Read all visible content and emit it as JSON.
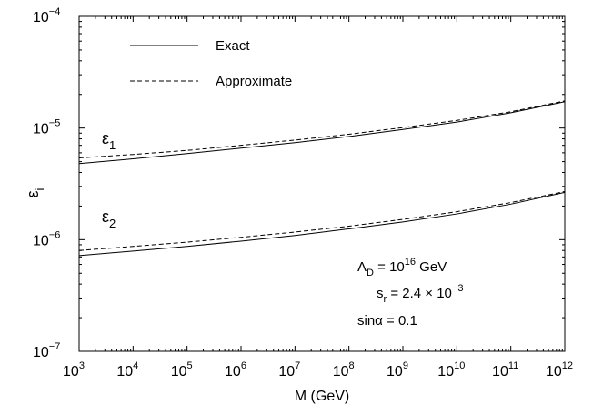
{
  "chart_data": {
    "type": "line",
    "xscale": "log",
    "yscale": "log",
    "xlim": [
      1000,
      1000000000000
    ],
    "ylim": [
      1e-07,
      0.0001
    ],
    "x_ticks": [
      {
        "value": 1000,
        "base": "10",
        "exp": "3"
      },
      {
        "value": 10000,
        "base": "10",
        "exp": "4"
      },
      {
        "value": 100000,
        "base": "10",
        "exp": "5"
      },
      {
        "value": 1000000,
        "base": "10",
        "exp": "6"
      },
      {
        "value": 10000000,
        "base": "10",
        "exp": "7"
      },
      {
        "value": 100000000,
        "base": "10",
        "exp": "8"
      },
      {
        "value": 1000000000,
        "base": "10",
        "exp": "9"
      },
      {
        "value": 10000000000,
        "base": "10",
        "exp": "10"
      },
      {
        "value": 100000000000,
        "base": "10",
        "exp": "11"
      },
      {
        "value": 1000000000000,
        "base": "10",
        "exp": "12"
      }
    ],
    "y_ticks": [
      {
        "value": 1e-07,
        "base": "10",
        "exp": "−7"
      },
      {
        "value": 1e-06,
        "base": "10",
        "exp": "−6"
      },
      {
        "value": 1e-05,
        "base": "10",
        "exp": "−5"
      },
      {
        "value": 0.0001,
        "base": "10",
        "exp": "−4"
      }
    ],
    "xlabel": "M (GeV)",
    "ylabel": {
      "main": "ε",
      "sub": "i"
    },
    "legend": {
      "position": "top-left",
      "entries": [
        {
          "label": "Exact",
          "style": "solid"
        },
        {
          "label": "Approximate",
          "style": "dashed"
        }
      ]
    },
    "series": [
      {
        "group": "eps1",
        "style": "solid",
        "x": [
          1000,
          10000,
          100000,
          1000000,
          10000000,
          100000000,
          1000000000,
          10000000000,
          100000000000,
          1000000000000
        ],
        "y": [
          4.8e-06,
          5.3e-06,
          5.9e-06,
          6.6e-06,
          7.4e-06,
          8.4e-06,
          9.7e-06,
          1.13e-05,
          1.37e-05,
          1.72e-05
        ]
      },
      {
        "group": "eps1",
        "style": "dashed",
        "x": [
          1000,
          10000,
          100000,
          1000000,
          10000000,
          100000000,
          1000000000,
          10000000000,
          100000000000,
          1000000000000
        ],
        "y": [
          5.4e-06,
          5.8e-06,
          6.3e-06,
          7e-06,
          7.8e-06,
          8.8e-06,
          1.01e-05,
          1.17e-05,
          1.4e-05,
          1.75e-05
        ]
      },
      {
        "group": "eps2",
        "style": "solid",
        "x": [
          1000,
          10000,
          100000,
          1000000,
          10000000,
          100000000,
          1000000000,
          10000000000,
          100000000000,
          1000000000000
        ],
        "y": [
          7.2e-07,
          7.9e-07,
          8.7e-07,
          9.7e-07,
          1.09e-06,
          1.25e-06,
          1.44e-06,
          1.7e-06,
          2.08e-06,
          2.65e-06
        ]
      },
      {
        "group": "eps2",
        "style": "dashed",
        "x": [
          1000,
          10000,
          100000,
          1000000,
          10000000,
          100000000,
          1000000000,
          10000000000,
          100000000000,
          1000000000000
        ],
        "y": [
          8e-07,
          8.7e-07,
          9.5e-07,
          1.05e-06,
          1.17e-06,
          1.32e-06,
          1.52e-06,
          1.78e-06,
          2.15e-06,
          2.7e-06
        ]
      }
    ],
    "curve_labels": [
      {
        "main": "ε",
        "sub": "1"
      },
      {
        "main": "ε",
        "sub": "2"
      }
    ],
    "annotations": {
      "lambda": {
        "main": "Λ",
        "sub": "D",
        "eq": " = 10",
        "sup": "16",
        "unit": " GeV"
      },
      "sr": {
        "main": "s",
        "sub": "r",
        "eq": " = 2.4 × 10",
        "sup": "−3"
      },
      "sinalpha": {
        "text": "sinα = 0.1"
      }
    }
  }
}
